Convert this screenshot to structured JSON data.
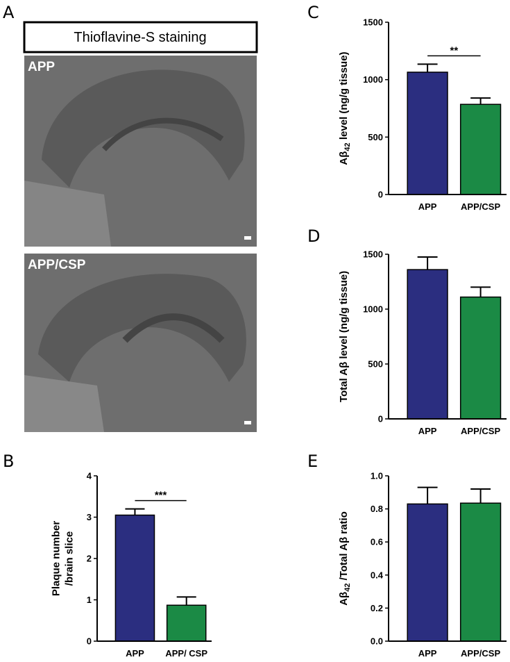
{
  "figure": {
    "panel_a": {
      "letter": "A",
      "title": "Thioflavine-S staining",
      "images": [
        {
          "label": "APP"
        },
        {
          "label": "APP/CSP"
        }
      ]
    }
  },
  "chart_data": [
    {
      "type": "bar",
      "panel": "B",
      "categories": [
        "APP",
        "APP/ CSP"
      ],
      "values": [
        3.05,
        0.87
      ],
      "errors": [
        0.15,
        0.2
      ],
      "colors": [
        "#2b2e80",
        "#1b8a45"
      ],
      "ylim": [
        0,
        4
      ],
      "yticks": [
        0,
        1,
        2,
        3,
        4
      ],
      "annotation": "***",
      "ylabel": [
        {
          "text": "Plaque number"
        },
        {
          "text": "/brain slice",
          "newline": true
        }
      ]
    },
    {
      "type": "bar",
      "panel": "C",
      "categories": [
        "APP",
        "APP/CSP"
      ],
      "values": [
        1065,
        785
      ],
      "errors": [
        70,
        55
      ],
      "colors": [
        "#2b2e80",
        "#1b8a45"
      ],
      "ylim": [
        0,
        1500
      ],
      "yticks": [
        0,
        500,
        1000,
        1500
      ],
      "annotation": "**",
      "ylabel": [
        {
          "text": "Aβ"
        },
        {
          "text": "42",
          "sub": true
        },
        {
          "text": " level (ng/g tissue)"
        }
      ]
    },
    {
      "type": "bar",
      "panel": "D",
      "categories": [
        "APP",
        "APP/CSP"
      ],
      "values": [
        1360,
        1110
      ],
      "errors": [
        115,
        90
      ],
      "colors": [
        "#2b2e80",
        "#1b8a45"
      ],
      "ylim": [
        0,
        1500
      ],
      "yticks": [
        0,
        500,
        1000,
        1500
      ],
      "ylabel": [
        {
          "text": "Total Aβ level (ng/g tissue)"
        }
      ]
    },
    {
      "type": "bar",
      "panel": "E",
      "categories": [
        "APP",
        "APP/CSP"
      ],
      "values": [
        0.83,
        0.835
      ],
      "errors": [
        0.1,
        0.085
      ],
      "colors": [
        "#2b2e80",
        "#1b8a45"
      ],
      "ylim": [
        0,
        1
      ],
      "yticks": [
        {
          "value": 0,
          "label": "0.0"
        },
        0.2,
        0.4,
        0.6,
        0.8,
        {
          "value": 1,
          "label": "1.0"
        }
      ],
      "ylabel": [
        {
          "text": "Aβ"
        },
        {
          "text": "42",
          "sub": true
        },
        {
          "text": " /Total Aβ ratio"
        }
      ]
    }
  ]
}
